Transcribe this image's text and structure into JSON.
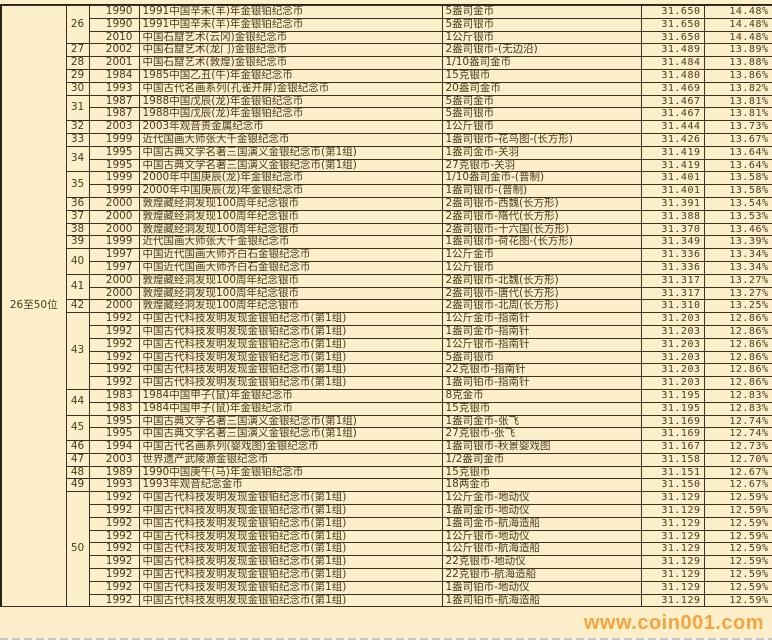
{
  "group_label": "26至50位",
  "groups": [
    {
      "rank": "26",
      "items": [
        {
          "year": "1990",
          "name": "1991中国辛未(羊)年金银铂纪念币",
          "spec": "5盎司金币",
          "value": "31.650",
          "pct": "14.48%"
        },
        {
          "year": "1990",
          "name": "1991中国辛未(羊)年金银铂纪念币",
          "spec": "5盎司银币",
          "value": "31.650",
          "pct": "14.48%"
        },
        {
          "year": "2010",
          "name": "中国石窟艺术(云冈)金银纪念币",
          "spec": "1公斤银币",
          "value": "31.650",
          "pct": "14.48%"
        }
      ]
    },
    {
      "rank": "27",
      "items": [
        {
          "year": "2002",
          "name": "中国石窟艺术(龙门)金银纪念币",
          "spec": "2盎司银币-(无边沿)",
          "value": "31.489",
          "pct": "13.89%"
        }
      ]
    },
    {
      "rank": "28",
      "items": [
        {
          "year": "2001",
          "name": "中国石窟艺术(敦煌)金银纪念币",
          "spec": "1/10盎司金币",
          "value": "31.484",
          "pct": "13.88%"
        }
      ]
    },
    {
      "rank": "29",
      "items": [
        {
          "year": "1984",
          "name": "1985中国乙丑(牛)年金银纪念币",
          "spec": "15克银币",
          "value": "31.480",
          "pct": "13.86%"
        }
      ]
    },
    {
      "rank": "30",
      "items": [
        {
          "year": "1993",
          "name": "中国古代名画系列(孔雀开屏)金银纪念币",
          "spec": "20盎司金币",
          "value": "31.469",
          "pct": "13.82%"
        }
      ]
    },
    {
      "rank": "31",
      "items": [
        {
          "year": "1987",
          "name": "1988中国戊辰(龙)年金银铂纪念币",
          "spec": "5盎司金币",
          "value": "31.467",
          "pct": "13.81%"
        },
        {
          "year": "1987",
          "name": "1988中国戊辰(龙)年金银铂纪念币",
          "spec": "5盎司银币",
          "value": "31.467",
          "pct": "13.81%"
        }
      ]
    },
    {
      "rank": "32",
      "items": [
        {
          "year": "2003",
          "name": "2003年观音贵金属纪念币",
          "spec": "1公斤银币",
          "value": "31.444",
          "pct": "13.73%"
        }
      ]
    },
    {
      "rank": "33",
      "items": [
        {
          "year": "1999",
          "name": "近代国画大师张大千金银纪念币",
          "spec": "1盎司银币-花鸟图-(长方形)",
          "value": "31.426",
          "pct": "13.67%"
        }
      ]
    },
    {
      "rank": "34",
      "items": [
        {
          "year": "1995",
          "name": "中国古典文学名著三国演义金银纪念币(第1组)",
          "spec": "1盎司金币-关羽",
          "value": "31.419",
          "pct": "13.64%"
        },
        {
          "year": "1995",
          "name": "中国古典文学名著三国演义金银纪念币(第1组)",
          "spec": "27克银币-关羽",
          "value": "31.419",
          "pct": "13.64%"
        }
      ]
    },
    {
      "rank": "35",
      "items": [
        {
          "year": "1999",
          "name": "2000年中国庚辰(龙)年金银纪念币",
          "spec": "1/10盎司金币-(普制)",
          "value": "31.401",
          "pct": "13.58%"
        },
        {
          "year": "1999",
          "name": "2000年中国庚辰(龙)年金银纪念币",
          "spec": "1盎司银币-(普制)",
          "value": "31.401",
          "pct": "13.58%"
        }
      ]
    },
    {
      "rank": "36",
      "items": [
        {
          "year": "2000",
          "name": "敦煌藏经洞发现100周年纪念银币",
          "spec": "2盎司银币-西魏(长方形)",
          "value": "31.391",
          "pct": "13.54%"
        }
      ]
    },
    {
      "rank": "37",
      "items": [
        {
          "year": "2000",
          "name": "敦煌藏经洞发现100周年纪念银币",
          "spec": "2盎司银币-隋代(长方形)",
          "value": "31.388",
          "pct": "13.53%"
        }
      ]
    },
    {
      "rank": "38",
      "items": [
        {
          "year": "2000",
          "name": "敦煌藏经洞发现100周年纪念银币",
          "spec": "2盎司银币-十六国(长方形)",
          "value": "31.370",
          "pct": "13.46%"
        }
      ]
    },
    {
      "rank": "39",
      "items": [
        {
          "year": "1999",
          "name": "近代国画大师张大千金银纪念币",
          "spec": "1盎司银币-荷花图-(长方形)",
          "value": "31.349",
          "pct": "13.39%"
        }
      ]
    },
    {
      "rank": "40",
      "items": [
        {
          "year": "1997",
          "name": "中国近代国画大师齐白石金银纪念币",
          "spec": "1公斤金币",
          "value": "31.336",
          "pct": "13.34%"
        },
        {
          "year": "1997",
          "name": "中国近代国画大师齐白石金银纪念币",
          "spec": "1公斤银币",
          "value": "31.336",
          "pct": "13.34%"
        }
      ]
    },
    {
      "rank": "41",
      "items": [
        {
          "year": "2000",
          "name": "敦煌藏经洞发现100周年纪念银币",
          "spec": "2盎司银币-北魏(长方形)",
          "value": "31.317",
          "pct": "13.27%"
        },
        {
          "year": "2000",
          "name": "敦煌藏经洞发现100周年纪念银币",
          "spec": "2盎司银币-唐代(长方形)",
          "value": "31.317",
          "pct": "13.27%"
        }
      ]
    },
    {
      "rank": "42",
      "items": [
        {
          "year": "2000",
          "name": "敦煌藏经洞发现100周年纪念银币",
          "spec": "2盎司银币-北周(长方形)",
          "value": "31.310",
          "pct": "13.25%"
        }
      ]
    },
    {
      "rank": "43",
      "items": [
        {
          "year": "1992",
          "name": "中国古代科技发明发现金银铂纪念币(第1组)",
          "spec": "1公斤金币-指南针",
          "value": "31.203",
          "pct": "12.86%"
        },
        {
          "year": "1992",
          "name": "中国古代科技发明发现金银铂纪念币(第1组)",
          "spec": "1盎司金币-指南针",
          "value": "31.203",
          "pct": "12.86%"
        },
        {
          "year": "1992",
          "name": "中国古代科技发明发现金银铂纪念币(第1组)",
          "spec": "1公斤银币-指南针",
          "value": "31.203",
          "pct": "12.86%"
        },
        {
          "year": "1992",
          "name": "中国古代科技发明发现金银铂纪念币(第1组)",
          "spec": "5盎司银币",
          "value": "31.203",
          "pct": "12.86%"
        },
        {
          "year": "1992",
          "name": "中国古代科技发明发现金银铂纪念币(第1组)",
          "spec": "22克银币-指南针",
          "value": "31.203",
          "pct": "12.86%"
        },
        {
          "year": "1992",
          "name": "中国古代科技发明发现金银铂纪念币(第1组)",
          "spec": "1盎司铂币-指南针",
          "value": "31.203",
          "pct": "12.86%"
        }
      ]
    },
    {
      "rank": "44",
      "items": [
        {
          "year": "1983",
          "name": "1984中国甲子(鼠)年金银纪念币",
          "spec": "8克金币",
          "value": "31.195",
          "pct": "12.83%"
        },
        {
          "year": "1983",
          "name": "1984中国甲子(鼠)年金银纪念币",
          "spec": "15克银币",
          "value": "31.195",
          "pct": "12.83%"
        }
      ]
    },
    {
      "rank": "45",
      "items": [
        {
          "year": "1995",
          "name": "中国古典文学名著三国演义金银纪念币(第1组)",
          "spec": "1盎司金币-张飞",
          "value": "31.169",
          "pct": "12.74%"
        },
        {
          "year": "1995",
          "name": "中国古典文学名著三国演义金银纪念币(第1组)",
          "spec": "27克银币-张飞",
          "value": "31.169",
          "pct": "12.74%"
        }
      ]
    },
    {
      "rank": "46",
      "items": [
        {
          "year": "1994",
          "name": "中国古代名画系列(婴戏图)金银纪念币",
          "spec": "1盎司银币-秋景婴戏图",
          "value": "31.167",
          "pct": "12.73%"
        }
      ]
    },
    {
      "rank": "47",
      "items": [
        {
          "year": "2003",
          "name": "世界遗产武陵源金银纪念币",
          "spec": "1/2盎司金币",
          "value": "31.158",
          "pct": "12.70%"
        }
      ]
    },
    {
      "rank": "48",
      "items": [
        {
          "year": "1989",
          "name": "1990中国庚午(马)年金银铂纪念币",
          "spec": "15克银币",
          "value": "31.151",
          "pct": "12.67%"
        }
      ]
    },
    {
      "rank": "49",
      "items": [
        {
          "year": "1993",
          "name": "1993年观音纪念金币",
          "spec": "18两金币",
          "value": "31.150",
          "pct": "12.67%"
        }
      ]
    },
    {
      "rank": "50",
      "items": [
        {
          "year": "1992",
          "name": "中国古代科技发明发现金银铂纪念币(第1组)",
          "spec": "1公斤金币-地动仪",
          "value": "31.129",
          "pct": "12.59%"
        },
        {
          "year": "1992",
          "name": "中国古代科技发明发现金银铂纪念币(第1组)",
          "spec": "1盎司金币-地动仪",
          "value": "31.129",
          "pct": "12.59%"
        },
        {
          "year": "1992",
          "name": "中国古代科技发明发现金银铂纪念币(第1组)",
          "spec": "1盎司金币-航海造船",
          "value": "31.129",
          "pct": "12.59%"
        },
        {
          "year": "1992",
          "name": "中国古代科技发明发现金银铂纪念币(第1组)",
          "spec": "1公斤银币-地动仪",
          "value": "31.129",
          "pct": "12.59%"
        },
        {
          "year": "1992",
          "name": "中国古代科技发明发现金银铂纪念币(第1组)",
          "spec": "1公斤银币-航海造船",
          "value": "31.129",
          "pct": "12.59%"
        },
        {
          "year": "1992",
          "name": "中国古代科技发明发现金银铂纪念币(第1组)",
          "spec": "22克银币-地动仪",
          "value": "31.129",
          "pct": "12.59%"
        },
        {
          "year": "1992",
          "name": "中国古代科技发明发现金银铂纪念币(第1组)",
          "spec": "22克银币-航海造船",
          "value": "31.129",
          "pct": "12.59%"
        },
        {
          "year": "1992",
          "name": "中国古代科技发明发现金银铂纪念币(第1组)",
          "spec": "1盎司铂币-地动仪",
          "value": "31.129",
          "pct": "12.59%"
        },
        {
          "year": "1992",
          "name": "中国古代科技发明发现金银铂纪念币(第1组)",
          "spec": "1盎司铂币-航海造船",
          "value": "31.129",
          "pct": "12.59%"
        }
      ]
    }
  ],
  "watermark": "www.coin001.com",
  "colors": {
    "cell_bg": "#fcefca",
    "text": "#4a3c1e",
    "grid": "#3a3222",
    "watermark": "#f59628"
  }
}
